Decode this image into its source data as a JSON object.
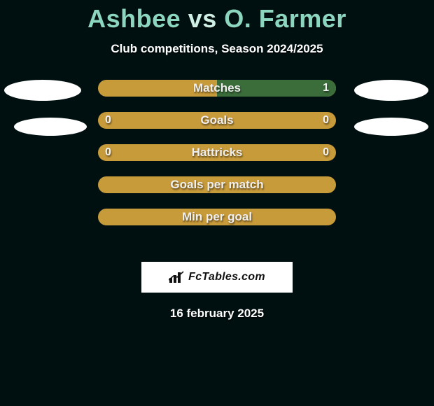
{
  "colors": {
    "background": "#001010",
    "title_player": "#8cd6c0",
    "title_vs": "#cfeee4",
    "row_base": "#c79a3a",
    "bar_left": "#3a6d3a",
    "bar_right": "#3a6d3a",
    "ellipse": "#ffffff",
    "brand_bg": "#ffffff",
    "brand_text": "#111111",
    "text": "#ffffff"
  },
  "title": {
    "player1": "Ashbee",
    "vs": "vs",
    "player2": "O. Farmer"
  },
  "subtitle": "Club competitions, Season 2024/2025",
  "rows": [
    {
      "label": "Matches",
      "left": "",
      "right": "1",
      "left_pct": 0,
      "right_pct": 50
    },
    {
      "label": "Goals",
      "left": "0",
      "right": "0",
      "left_pct": 0,
      "right_pct": 0
    },
    {
      "label": "Hattricks",
      "left": "0",
      "right": "0",
      "left_pct": 0,
      "right_pct": 0
    },
    {
      "label": "Goals per match",
      "left": "",
      "right": "",
      "left_pct": 0,
      "right_pct": 0
    },
    {
      "label": "Min per goal",
      "left": "",
      "right": "",
      "left_pct": 0,
      "right_pct": 0
    }
  ],
  "brand": "FcTables.com",
  "date": "16 february 2025"
}
